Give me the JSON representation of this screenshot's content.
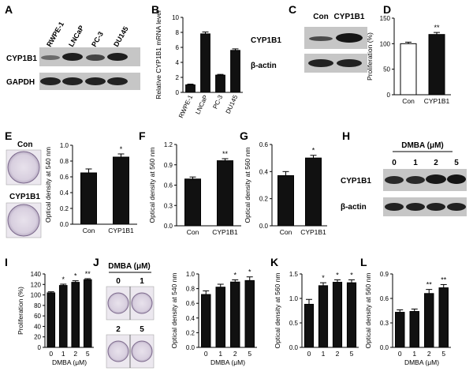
{
  "panels": {
    "A": {
      "letter": "A",
      "cells": [
        "RWPE-1",
        "LNCaP",
        "PC-3",
        "DU145"
      ],
      "rows": [
        "CYP1B1",
        "GAPDH"
      ]
    },
    "C": {
      "letter": "C",
      "conditions": [
        "Con",
        "CYP1B1"
      ],
      "rows": [
        "CYP1B1",
        "β-actin"
      ]
    },
    "E": {
      "letter": "E",
      "dish_labels": [
        "Con",
        "CYP1B1"
      ]
    },
    "H": {
      "letter": "H",
      "treatment": "DMBA (μM)",
      "doses": [
        "0",
        "1",
        "2",
        "5"
      ],
      "rows": [
        "CYP1B1",
        "β-actin"
      ]
    },
    "J": {
      "letter": "J",
      "treatment": "DMBA (μM)",
      "doses": [
        "0",
        "1",
        "2",
        "5"
      ]
    }
  },
  "chart_data": [
    {
      "panel": "B",
      "type": "bar",
      "ylabel": "Relative CYP1B1 mRNA level",
      "categories": [
        "RWPE-1",
        "LNCaP",
        "PC-3",
        "DU145"
      ],
      "values": [
        1.0,
        7.8,
        2.3,
        5.6
      ],
      "errors": [
        0.1,
        0.25,
        0.1,
        0.2
      ],
      "ylim": [
        0,
        10
      ],
      "yticks": [
        "0",
        "2",
        "4",
        "6",
        "8",
        "10"
      ],
      "sig": [
        "",
        "",
        "",
        ""
      ],
      "xlabel": "",
      "fills": [
        "#111111",
        "#111111",
        "#111111",
        "#111111"
      ],
      "rotate_labels": true
    },
    {
      "panel": "D",
      "type": "bar",
      "ylabel": "Proliferation (%)",
      "categories": [
        "Con",
        "CYP1B1"
      ],
      "values": [
        100,
        118
      ],
      "errors": [
        3,
        4
      ],
      "ylim": [
        0,
        150
      ],
      "yticks": [
        "0",
        "50",
        "100",
        "150"
      ],
      "sig": [
        "",
        "**"
      ],
      "xlabel": "",
      "fills": [
        "#ffffff",
        "#111111"
      ],
      "rotate_labels": false
    },
    {
      "panel": "E",
      "type": "bar",
      "ylabel": "Optical density at 540 nm",
      "categories": [
        "Con",
        "CYP1B1"
      ],
      "values": [
        0.65,
        0.85
      ],
      "errors": [
        0.05,
        0.04
      ],
      "ylim": [
        0,
        1.0
      ],
      "yticks": [
        "0.0",
        "0.2",
        "0.4",
        "0.6",
        "0.8",
        "1.0"
      ],
      "sig": [
        "",
        "*"
      ],
      "xlabel": "",
      "fills": [
        "#111111",
        "#111111"
      ],
      "rotate_labels": false
    },
    {
      "panel": "F",
      "type": "bar",
      "ylabel": "Optical density at 560 nm",
      "categories": [
        "Con",
        "CYP1B1"
      ],
      "values": [
        0.69,
        0.96
      ],
      "errors": [
        0.03,
        0.03
      ],
      "ylim": [
        0,
        1.2
      ],
      "yticks": [
        "0.0",
        "0.3",
        "0.6",
        "0.9",
        "1.2"
      ],
      "sig": [
        "",
        "**"
      ],
      "xlabel": "",
      "fills": [
        "#111111",
        "#111111"
      ],
      "rotate_labels": false
    },
    {
      "panel": "G",
      "type": "bar",
      "ylabel": "Optical density at 560 nm",
      "categories": [
        "Con",
        "CYP1B1"
      ],
      "values": [
        0.37,
        0.5
      ],
      "errors": [
        0.03,
        0.02
      ],
      "ylim": [
        0,
        0.6
      ],
      "yticks": [
        "0.0",
        "0.2",
        "0.4",
        "0.6"
      ],
      "sig": [
        "",
        "*"
      ],
      "xlabel": "",
      "fills": [
        "#111111",
        "#111111"
      ],
      "rotate_labels": false
    },
    {
      "panel": "I",
      "type": "bar",
      "ylabel": "Proliferation (%)",
      "categories": [
        "0",
        "1",
        "2",
        "5"
      ],
      "values": [
        104,
        118,
        124,
        129
      ],
      "errors": [
        2,
        2.5,
        3,
        2
      ],
      "ylim": [
        0,
        140
      ],
      "yticks": [
        "0",
        "20",
        "40",
        "60",
        "80",
        "100",
        "120",
        "140"
      ],
      "sig": [
        "",
        "*",
        "*",
        "**"
      ],
      "xlabel": "DMBA (μM)",
      "fills": [
        "#111111",
        "#111111",
        "#111111",
        "#111111"
      ],
      "rotate_labels": false
    },
    {
      "panel": "J",
      "type": "bar",
      "ylabel": "Optical density at 540 nm",
      "categories": [
        "0",
        "1",
        "2",
        "5"
      ],
      "values": [
        0.72,
        0.82,
        0.89,
        0.91
      ],
      "errors": [
        0.05,
        0.04,
        0.03,
        0.05
      ],
      "ylim": [
        0,
        1.0
      ],
      "yticks": [
        "0.0",
        "0.2",
        "0.4",
        "0.6",
        "0.8",
        "1.0"
      ],
      "sig": [
        "",
        "",
        "*",
        "*"
      ],
      "xlabel": "DMBA (μM)",
      "fills": [
        "#111111",
        "#111111",
        "#111111",
        "#111111"
      ],
      "rotate_labels": false
    },
    {
      "panel": "K",
      "type": "bar",
      "ylabel": "Optical density at 560 nm",
      "categories": [
        "0",
        "1",
        "2",
        "5"
      ],
      "values": [
        0.88,
        1.26,
        1.33,
        1.32
      ],
      "errors": [
        0.1,
        0.06,
        0.05,
        0.06
      ],
      "ylim": [
        0,
        1.5
      ],
      "yticks": [
        "0.0",
        "0.5",
        "1.0",
        "1.5"
      ],
      "sig": [
        "",
        "*",
        "*",
        "*"
      ],
      "xlabel": "",
      "fills": [
        "#111111",
        "#111111",
        "#111111",
        "#111111"
      ],
      "rotate_labels": false
    },
    {
      "panel": "L",
      "type": "bar",
      "ylabel": "Optical density at 560 nm",
      "categories": [
        "0",
        "1",
        "2",
        "5"
      ],
      "values": [
        0.43,
        0.44,
        0.66,
        0.73
      ],
      "errors": [
        0.03,
        0.03,
        0.05,
        0.04
      ],
      "ylim": [
        0,
        0.9
      ],
      "yticks": [
        "0.0",
        "0.3",
        "0.6",
        "0.9"
      ],
      "sig": [
        "",
        "",
        "**",
        "**"
      ],
      "xlabel": "DMBA (μM)",
      "fills": [
        "#111111",
        "#111111",
        "#111111",
        "#111111"
      ],
      "rotate_labels": false
    }
  ]
}
